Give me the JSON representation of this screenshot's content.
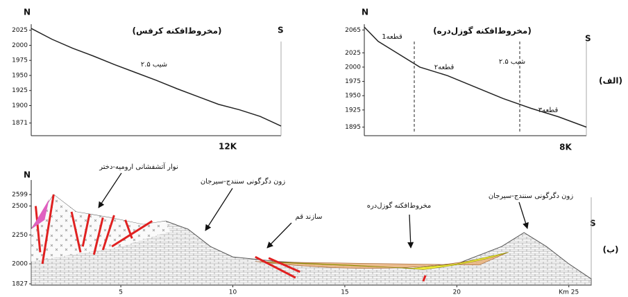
{
  "chart_data": [
    {
      "type": "line",
      "title": "(مخروط‌افکنه کرفس)",
      "left_label": "N",
      "right_label": "S",
      "xlabel": "12K",
      "annotations": [
        "شیب ۲.۵"
      ],
      "x": [
        0,
        1,
        2,
        3,
        4,
        5,
        6,
        7,
        8,
        9,
        10,
        11,
        12
      ],
      "values": [
        2028,
        2010,
        1995,
        1982,
        1968,
        1955,
        1942,
        1928,
        1915,
        1902,
        1893,
        1882,
        1866
      ],
      "color": "#222222",
      "xlim": [
        0,
        12
      ],
      "ylim": [
        1850,
        2035
      ],
      "yticks": [
        2025,
        2000,
        1975,
        1950,
        1925,
        1900,
        1871
      ]
    },
    {
      "type": "line",
      "title": "(مخروط‌افکنه گوزل‌دره)",
      "left_label": "N",
      "right_label": "S",
      "xlabel": "8K",
      "panel_label": "(الف)",
      "annotations": [
        "قطعه1",
        "قطعه۲",
        "قطعه۳",
        "شیب ۲.۵"
      ],
      "dividers": [
        1.8,
        5.6
      ],
      "x": [
        0,
        0.5,
        1,
        2,
        3,
        4,
        5,
        6,
        7,
        8
      ],
      "values": [
        2070,
        2045,
        2030,
        2000,
        1985,
        1965,
        1945,
        1928,
        1913,
        1895
      ],
      "color": "#222222",
      "xlim": [
        0,
        8
      ],
      "ylim": [
        1880,
        2075
      ],
      "yticks": [
        2065,
        2025,
        2000,
        1975,
        1950,
        1925,
        1895
      ]
    },
    {
      "type": "section",
      "left_label": "N",
      "right_label": "S",
      "panel_label": "(ب)",
      "annotations": [
        "نوار آتشفشانی ارومیه-دختر",
        "زون دگرگونی سنندج-سیرجان",
        "سازند قم",
        "مخروط‌افکنه گوزل‌دره",
        "زون دگرگونی سنندج-سیرجان"
      ],
      "x": [
        1,
        2,
        3,
        4.5,
        6,
        7,
        8,
        9,
        10,
        12,
        15,
        18,
        20,
        22,
        23,
        24,
        25,
        26
      ],
      "values": [
        2300,
        2599,
        2450,
        2400,
        2340,
        2370,
        2300,
        2150,
        2060,
        2020,
        1990,
        1960,
        2000,
        2150,
        2270,
        2150,
        2000,
        1870
      ],
      "color": "#555555",
      "xlim": [
        1,
        26
      ],
      "ylim": [
        1815,
        2725
      ],
      "yticks": [
        2599,
        2500,
        2250,
        2000,
        1827
      ],
      "xticks": [
        5,
        10,
        15,
        20,
        {
          "value": 25,
          "label": "Km 25"
        }
      ]
    }
  ]
}
